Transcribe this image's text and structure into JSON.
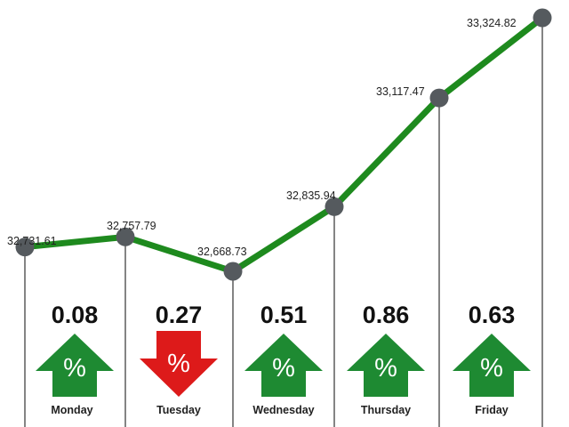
{
  "chart_data": {
    "type": "line",
    "categories": [
      "Monday",
      "Tuesday",
      "Wednesday",
      "Thursday",
      "Friday"
    ],
    "index_values": [
      32731.61,
      32757.79,
      32668.73,
      32835.94,
      33117.47,
      33324.82
    ],
    "index_labels": [
      "32,731.61",
      "32,757.79",
      "32,668.73",
      "32,835.94",
      "33,117.47",
      "33,324.82"
    ],
    "daily_changes": [
      {
        "day": "Monday",
        "percent": "0.08",
        "direction": "up"
      },
      {
        "day": "Tuesday",
        "percent": "0.27",
        "direction": "down"
      },
      {
        "day": "Wednesday",
        "percent": "0.51",
        "direction": "up"
      },
      {
        "day": "Thursday",
        "percent": "0.86",
        "direction": "up"
      },
      {
        "day": "Friday",
        "percent": "0.63",
        "direction": "up"
      }
    ],
    "arrow_symbol": "%",
    "ylim": [
      32550,
      33340
    ],
    "grid": false,
    "legend": "none"
  },
  "colors": {
    "line": "#1e8a1e",
    "marker": "#555a5e",
    "up": "#1e8a32",
    "down": "#dd1a1a",
    "vline": "#333333"
  }
}
